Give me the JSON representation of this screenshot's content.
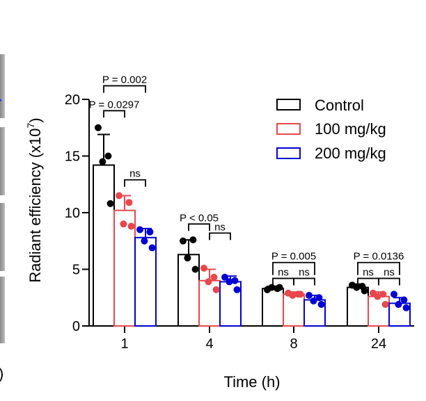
{
  "chart_data": {
    "type": "bar",
    "title": "",
    "xlabel": "Time (h)",
    "ylabel": "Radiant efficiency (x10",
    "ylabel_superscript": "7",
    "ylabel_close": ")",
    "ylim": [
      0,
      20
    ],
    "yticks": [
      "0",
      "5",
      "10",
      "15",
      "20"
    ],
    "categories": [
      "1",
      "4",
      "8",
      "24"
    ],
    "series": [
      {
        "name": "Control",
        "color": "#000000",
        "values": [
          14.2,
          6.3,
          3.3,
          3.4
        ],
        "errors": [
          2.7,
          1.3,
          0.2,
          0.3
        ],
        "points": [
          [
            17.5,
            15.0,
            14.5,
            10.8
          ],
          [
            7.5,
            7.6,
            6.0,
            5.0
          ],
          [
            3.2,
            3.3,
            3.4,
            3.4
          ],
          [
            3.6,
            3.5,
            3.4,
            3.1
          ]
        ]
      },
      {
        "name": "100 mg/kg",
        "color": "#e8474c",
        "values": [
          10.2,
          4.0,
          2.8,
          2.6
        ],
        "errors": [
          1.3,
          1.0,
          0.2,
          0.4
        ],
        "points": [
          [
            11.5,
            10.9,
            9.0,
            8.8
          ],
          [
            5.1,
            4.3,
            3.9,
            3.2
          ],
          [
            2.9,
            2.8,
            2.7,
            2.8
          ],
          [
            2.9,
            2.8,
            2.6,
            1.9
          ]
        ]
      },
      {
        "name": "200 mg/kg",
        "color": "#0000d4",
        "values": [
          7.8,
          3.9,
          2.3,
          2.0
        ],
        "errors": [
          0.8,
          0.5,
          0.4,
          0.5
        ],
        "points": [
          [
            8.5,
            8.3,
            7.5,
            6.9
          ],
          [
            4.3,
            4.0,
            3.9,
            3.2
          ],
          [
            2.7,
            2.5,
            2.2,
            1.9
          ],
          [
            2.8,
            2.3,
            1.9,
            1.6
          ]
        ]
      }
    ],
    "annotations": [
      {
        "text": "P = 0.002",
        "group": 0,
        "from": 0,
        "to": 2,
        "level": 21.2
      },
      {
        "text": "P = 0.0297",
        "group": 0,
        "from": 0,
        "to": 1,
        "level": 19.0
      },
      {
        "text": "ns",
        "group": 0,
        "from": 1,
        "to": 2,
        "level": 12.9
      },
      {
        "text": "P < 0.05",
        "group": 1,
        "from": 0,
        "to": 1,
        "level": 9.0
      },
      {
        "text": "ns",
        "group": 1,
        "from": 1,
        "to": 2,
        "level": 8.2
      },
      {
        "text": "P = 0.005",
        "group": 2,
        "from": 0,
        "to": 2,
        "level": 5.6
      },
      {
        "text": "ns",
        "group": 2,
        "from": 0,
        "to": 1,
        "level": 4.2
      },
      {
        "text": "ns",
        "group": 2,
        "from": 1,
        "to": 2,
        "level": 4.2
      },
      {
        "text": "P = 0.0136",
        "group": 3,
        "from": 0,
        "to": 2,
        "level": 5.6
      },
      {
        "text": "ns",
        "group": 3,
        "from": 0,
        "to": 1,
        "level": 4.2
      },
      {
        "text": "ns",
        "group": 3,
        "from": 1,
        "to": 2,
        "level": 4.2
      }
    ],
    "legend_position": "top-right",
    "fragment_text": ")"
  }
}
